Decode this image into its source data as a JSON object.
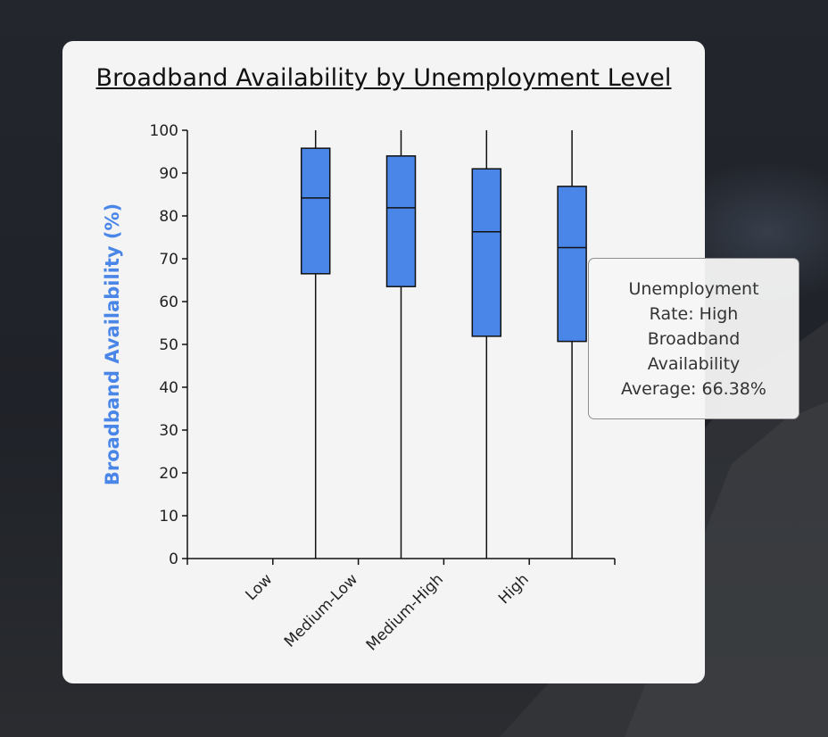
{
  "chart_data": {
    "type": "box",
    "title": "Broadband Availability by Unemployment Level",
    "xlabel": "",
    "ylabel": "Broadband Availability (%)",
    "ylim": [
      0,
      100
    ],
    "yticks": [
      0,
      10,
      20,
      30,
      40,
      50,
      60,
      70,
      80,
      90,
      100
    ],
    "categories": [
      "Low",
      "Medium-Low",
      "Medium-High",
      "High"
    ],
    "boxes": [
      {
        "category": "Low",
        "min": 0,
        "q1": 66.5,
        "median": 84.2,
        "q3": 95.8,
        "max": 100
      },
      {
        "category": "Medium-Low",
        "min": 0,
        "q1": 63.5,
        "median": 81.9,
        "q3": 94.0,
        "max": 100
      },
      {
        "category": "Medium-High",
        "min": 0,
        "q1": 51.9,
        "median": 76.3,
        "q3": 91.0,
        "max": 100
      },
      {
        "category": "High",
        "min": 0,
        "q1": 50.7,
        "median": 72.6,
        "q3": 86.9,
        "max": 100
      }
    ],
    "grid": false,
    "colors": {
      "box_fill": "#4a86e8",
      "box_stroke": "#111111",
      "ylabel": "#4a86e8"
    }
  },
  "tooltip": {
    "text": "Unemployment Rate: High Broadband Availability Average: 66.38%"
  }
}
